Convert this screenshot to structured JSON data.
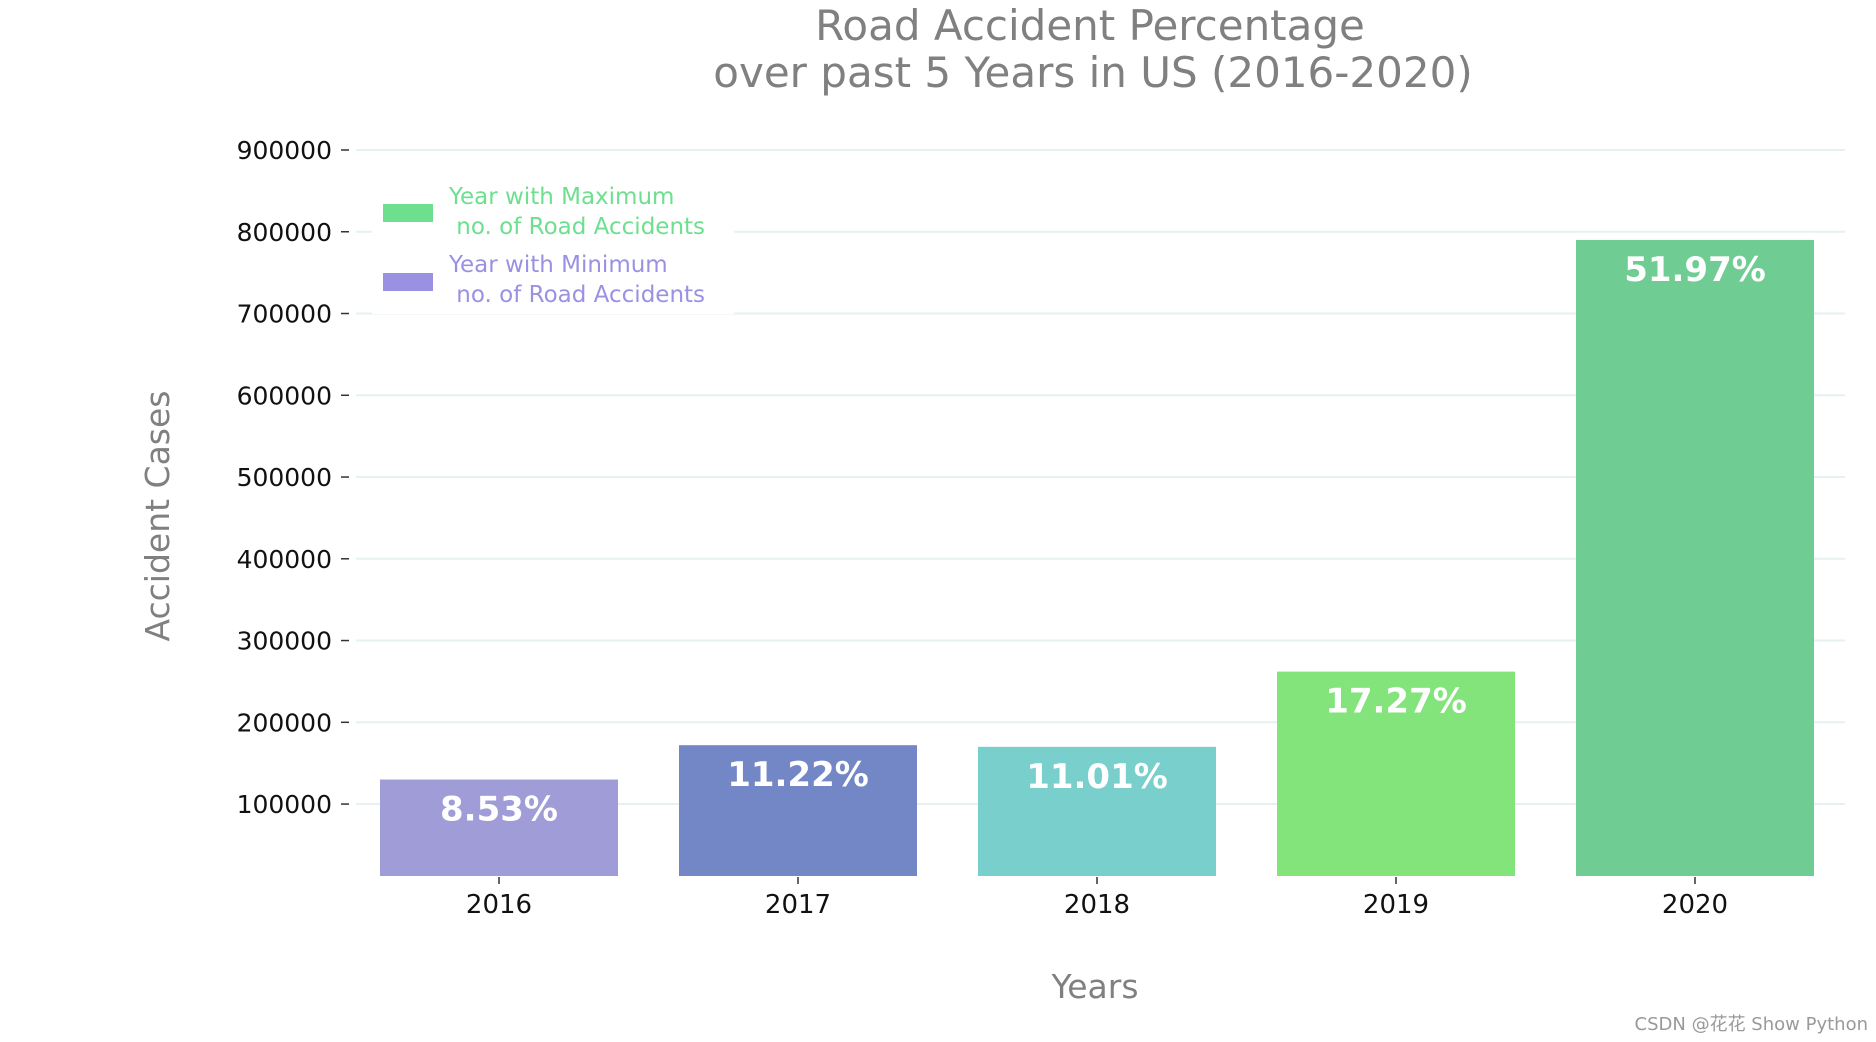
{
  "chart_data": {
    "type": "bar",
    "title_lines": [
      "Road Accident Percentage",
      "over past 5 Years in US (2016-2020)"
    ],
    "xlabel": "Years",
    "ylabel": "Accident Cases",
    "categories": [
      "2016",
      "2017",
      "2018",
      "2019",
      "2020"
    ],
    "values": [
      130000,
      172000,
      170000,
      262000,
      790000
    ],
    "bar_labels": [
      "8.53%",
      "11.22%",
      "11.01%",
      "17.27%",
      "51.97%"
    ],
    "colors": [
      "#a09cd8",
      "#7387c6",
      "#79cfcb",
      "#82e47a",
      "#6fcd93"
    ],
    "ylim": [
      12000,
      900000
    ],
    "yticks": [
      100000,
      200000,
      300000,
      400000,
      500000,
      600000,
      700000,
      800000,
      900000
    ],
    "ytick_labels": [
      "100000",
      "200000",
      "300000",
      "400000",
      "500000",
      "600000",
      "700000",
      "800000",
      "900000"
    ],
    "grid": true,
    "legend": {
      "placement": "top-left",
      "entries": [
        {
          "lines": [
            "Year with Maximum",
            " no. of Road Accidents"
          ],
          "color": "#6ddf8f"
        },
        {
          "lines": [
            "Year with Minimum",
            " no. of Road Accidents"
          ],
          "color": "#9b91e2"
        }
      ]
    }
  },
  "colors": {
    "title": "#808080",
    "axis_label": "#808080",
    "tick_text": "#111111",
    "grid": "#e6f2f2",
    "bar_label": "#ffffff"
  },
  "watermark": "CSDN @花花 Show Python"
}
